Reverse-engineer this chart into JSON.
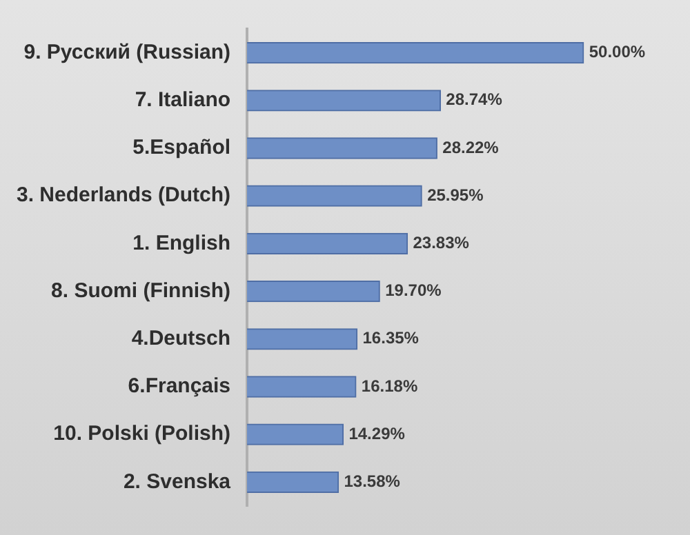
{
  "chart_data": {
    "type": "bar",
    "orientation": "horizontal",
    "grid": false,
    "legend": false,
    "categories": [
      "9. Русский (Russian)",
      "7. Italiano",
      "5.Español",
      "3. Nederlands (Dutch)",
      "1. English",
      "8. Suomi (Finnish)",
      "4.Deutsch",
      "6.Français",
      "10. Polski (Polish)",
      "2. Svenska"
    ],
    "values": [
      50.0,
      28.74,
      28.22,
      25.95,
      23.83,
      19.7,
      16.35,
      16.18,
      14.29,
      13.58
    ],
    "value_labels": [
      "50.00%",
      "28.74%",
      "28.22%",
      "25.95%",
      "23.83%",
      "19.70%",
      "16.35%",
      "16.18%",
      "14.29%",
      "13.58%"
    ],
    "color": "#6e8fc6"
  }
}
